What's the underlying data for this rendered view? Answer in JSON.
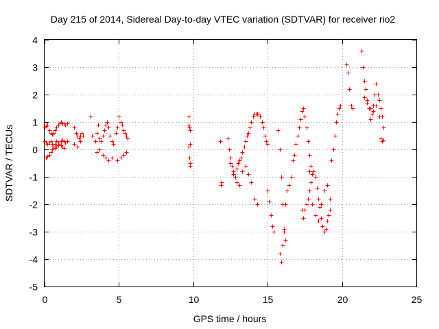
{
  "chart_data": {
    "type": "scatter",
    "title": "Day 215 of 2014, Sidereal Day-to-day VTEC variation (SDTVAR) for receiver rio2",
    "xlabel": "GPS time / hours",
    "ylabel": "SDTVAR / TECUs",
    "xlim": [
      0,
      25
    ],
    "ylim": [
      -5,
      4
    ],
    "xticks": [
      0,
      5,
      10,
      15,
      20,
      25
    ],
    "yticks": [
      -5,
      -4,
      -3,
      -2,
      -1,
      0,
      1,
      2,
      3,
      4
    ],
    "xtick_labels": [
      "0",
      "5",
      "10",
      "15",
      "20",
      "25"
    ],
    "ytick_labels": [
      "-5",
      "-4",
      "-3",
      "-2",
      "-1",
      "0",
      "1",
      "2",
      "3",
      "4"
    ],
    "grid": true,
    "marker": "+",
    "color": "#ff0000",
    "series": [
      {
        "name": "rio2",
        "x": [
          0.0,
          0.1,
          0.2,
          0.3,
          0.4,
          0.5,
          0.6,
          0.7,
          0.8,
          0.9,
          1.0,
          1.1,
          1.2,
          1.3,
          1.4,
          1.5,
          0.0,
          0.1,
          0.2,
          0.3,
          0.4,
          0.5,
          0.6,
          0.7,
          0.8,
          0.9,
          1.0,
          1.1,
          1.2,
          1.3,
          1.4,
          1.5,
          0.1,
          0.2,
          0.3,
          0.4,
          0.5,
          0.6,
          0.7,
          0.8,
          0.9,
          1.0,
          1.1,
          1.2,
          1.3,
          2.0,
          2.1,
          2.2,
          2.3,
          2.4,
          2.5,
          2.6,
          2.0,
          2.2,
          2.4,
          3.1,
          3.2,
          3.4,
          3.5,
          3.6,
          3.7,
          3.8,
          3.9,
          4.0,
          4.1,
          4.2,
          4.3,
          4.4,
          4.5,
          4.6,
          3.5,
          3.7,
          3.9,
          4.1,
          4.3,
          4.5,
          4.8,
          4.9,
          5.0,
          5.1,
          5.2,
          5.3,
          5.4,
          5.5,
          5.6,
          4.9,
          5.1,
          5.3,
          5.5,
          9.7,
          9.7,
          9.75,
          9.8,
          9.8,
          9.7,
          9.75,
          9.8,
          9.8,
          11.8,
          11.85,
          11.9,
          12.3,
          12.4,
          12.5,
          12.6,
          12.7,
          12.8,
          12.9,
          13.0,
          13.1,
          13.2,
          13.3,
          13.4,
          13.5,
          13.6,
          13.7,
          13.8,
          13.9,
          14.0,
          14.1,
          14.2,
          14.3,
          14.4,
          14.5,
          14.6,
          14.7,
          14.8,
          14.9,
          15.0,
          12.5,
          12.7,
          12.9,
          13.1,
          13.3,
          13.5,
          13.7,
          13.9,
          14.1,
          14.3,
          15.0,
          15.1,
          15.2,
          15.3,
          15.4,
          15.7,
          15.8,
          15.9,
          16.0,
          16.1,
          16.2,
          16.3,
          16.4,
          15.8,
          15.9,
          16.0,
          16.1,
          16.2,
          16.6,
          16.7,
          16.8,
          16.9,
          17.0,
          17.1,
          17.2,
          17.3,
          17.4,
          17.5,
          17.6,
          17.7,
          17.8,
          17.9,
          17.3,
          17.4,
          17.5,
          17.6,
          17.7,
          17.8,
          17.9,
          18.0,
          18.1,
          18.2,
          18.3,
          18.4,
          18.5,
          18.6,
          18.7,
          18.8,
          18.9,
          19.0,
          19.1,
          19.2,
          17.8,
          18.0,
          18.2,
          18.4,
          18.6,
          18.8,
          19.0,
          19.2,
          19.3,
          19.4,
          19.5,
          19.6,
          19.7,
          19.8,
          19.9,
          20.3,
          20.4,
          20.5,
          20.6,
          20.7,
          21.3,
          21.4,
          21.5,
          21.6,
          21.7,
          21.8,
          21.9,
          22.0,
          22.1,
          22.2,
          22.3,
          22.4,
          22.5,
          22.6,
          22.7,
          22.8,
          21.5,
          21.7,
          21.9,
          22.1,
          22.3,
          22.5,
          22.6,
          22.7,
          22.8
        ],
        "y": [
          0.8,
          0.85,
          0.9,
          0.7,
          0.6,
          0.55,
          0.6,
          0.7,
          0.8,
          0.9,
          0.95,
          1.0,
          0.95,
          0.95,
          0.9,
          0.95,
          0.3,
          0.25,
          0.2,
          0.25,
          0.3,
          0.2,
          0.1,
          0.05,
          0.1,
          0.15,
          0.2,
          0.3,
          0.35,
          0.3,
          0.25,
          0.3,
          -0.3,
          -0.25,
          -0.2,
          -0.1,
          0.0,
          0.1,
          0.2,
          0.3,
          0.25,
          0.2,
          0.15,
          0.1,
          0.05,
          0.8,
          0.6,
          0.5,
          0.4,
          0.5,
          0.6,
          0.5,
          0.2,
          0.1,
          0.3,
          1.2,
          0.5,
          0.3,
          0.6,
          0.9,
          0.4,
          0.3,
          0.5,
          0.7,
          0.9,
          1.0,
          0.8,
          0.5,
          0.3,
          0.2,
          -0.1,
          0.0,
          -0.2,
          -0.3,
          -0.4,
          -0.3,
          0.6,
          0.8,
          1.2,
          1.0,
          0.9,
          0.7,
          0.6,
          0.5,
          0.4,
          -0.4,
          -0.3,
          -0.2,
          -0.1,
          1.2,
          0.9,
          0.8,
          0.7,
          0.2,
          0.1,
          -0.3,
          -0.5,
          -0.6,
          0.3,
          -1.3,
          -1.2,
          0.4,
          0.0,
          -0.3,
          -0.6,
          -0.8,
          -1.0,
          -0.7,
          -0.5,
          -0.4,
          -0.3,
          -0.1,
          0.1,
          0.3,
          0.5,
          0.6,
          0.8,
          1.0,
          1.2,
          1.3,
          1.3,
          1.3,
          1.3,
          1.2,
          1.0,
          0.8,
          0.5,
          0.3,
          0.2,
          -0.5,
          -0.9,
          -1.2,
          -1.3,
          -0.8,
          -0.6,
          -0.9,
          -1.2,
          -1.8,
          -2.0,
          -1.5,
          -1.9,
          -2.4,
          -2.8,
          -3.0,
          0.7,
          -3.8,
          -4.1,
          -3.5,
          -2.9,
          -2.0,
          -1.5,
          -1.3,
          0.0,
          -1.0,
          -2.0,
          -3.0,
          -3.3,
          -1.0,
          -0.4,
          -0.2,
          0.2,
          0.5,
          0.8,
          1.1,
          1.4,
          1.5,
          1.2,
          0.8,
          0.3,
          -0.2,
          -0.6,
          -2.2,
          -2.5,
          -2.2,
          -2.0,
          -1.8,
          -1.5,
          -1.2,
          -0.9,
          -0.8,
          -1.0,
          -1.4,
          -1.8,
          -2.1,
          -2.5,
          -2.8,
          -3.0,
          -2.9,
          -2.6,
          -2.4,
          -2.2,
          -0.8,
          -2.0,
          -2.4,
          -2.6,
          -2.0,
          -1.5,
          -1.3,
          -1.8,
          -0.4,
          0.0,
          0.5,
          1.0,
          1.3,
          1.5,
          1.6,
          3.1,
          2.8,
          2.2,
          1.6,
          1.5,
          3.6,
          3.0,
          2.5,
          2.2,
          1.8,
          1.5,
          1.1,
          1.3,
          1.6,
          2.0,
          2.4,
          2.0,
          1.8,
          1.5,
          1.2,
          0.8,
          1.9,
          1.7,
          1.5,
          1.4,
          1.6,
          1.2,
          0.4,
          0.3,
          0.35
        ]
      }
    ]
  }
}
